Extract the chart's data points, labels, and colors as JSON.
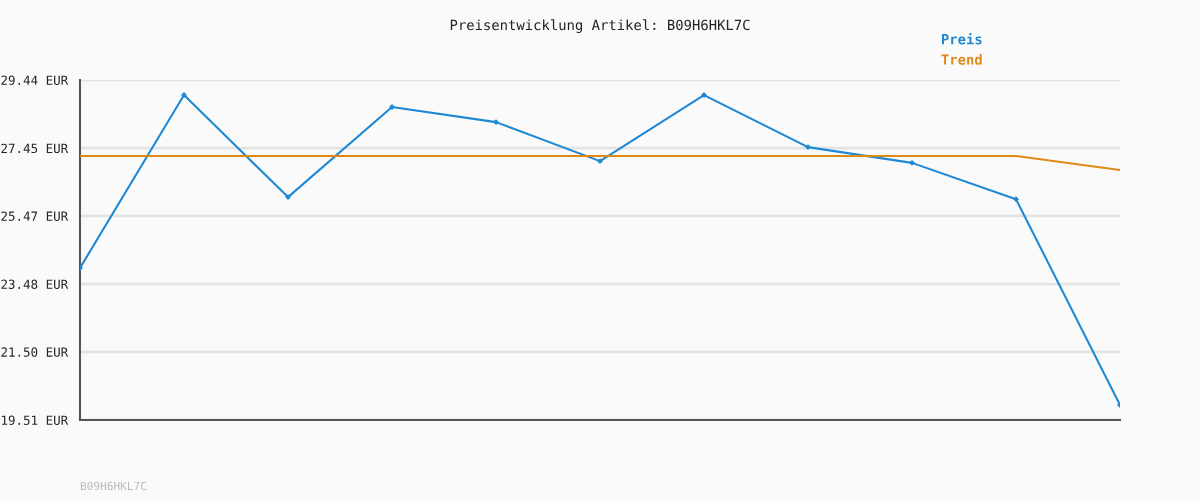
{
  "chart_data": {
    "type": "line",
    "title": "Preisentwicklung Artikel: B09H6HKL7C",
    "categories": [
      null,
      null,
      null,
      null,
      null,
      null,
      null,
      null,
      null,
      null,
      null
    ],
    "series": [
      {
        "name": "Preis",
        "color": "#1e88d4",
        "marker": "diamond",
        "values": [
          23.95,
          29.0,
          26.02,
          28.65,
          28.21,
          27.07,
          29.0,
          27.48,
          27.02,
          25.96,
          19.95
        ]
      },
      {
        "name": "Trend",
        "color": "#e08a16",
        "marker": "none",
        "values": [
          27.22,
          27.22,
          27.22,
          27.22,
          27.22,
          27.22,
          27.22,
          27.22,
          27.22,
          27.22,
          26.81
        ]
      }
    ],
    "ylim": [
      19.51,
      29.44
    ],
    "yticks": [
      {
        "value": 19.51,
        "label": "19.51 EUR"
      },
      {
        "value": 21.5,
        "label": "21.50 EUR"
      },
      {
        "value": 23.48,
        "label": "23.48 EUR"
      },
      {
        "value": 25.47,
        "label": "25.47 EUR"
      },
      {
        "value": 27.45,
        "label": "27.45 EUR"
      },
      {
        "value": 29.44,
        "label": "29.44 EUR"
      }
    ],
    "grid": "y",
    "legend": "top right",
    "line_style": "solid",
    "annotations": [
      "B09H6HKL7C"
    ]
  }
}
